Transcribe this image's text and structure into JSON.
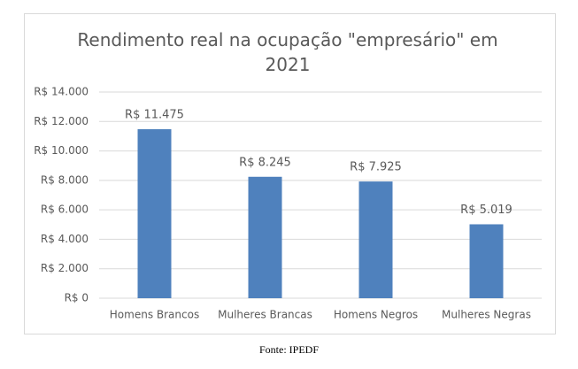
{
  "chart_data": {
    "type": "bar",
    "title": "Rendimento real na ocupação \"empresário\" em 2021",
    "categories": [
      "Homens Brancos",
      "Mulheres Brancas",
      "Homens Negros",
      "Mulheres Negras"
    ],
    "values": [
      11475,
      8245,
      7925,
      5019
    ],
    "value_labels": [
      "R$ 11.475",
      "R$ 8.245",
      "R$ 7.925",
      "R$ 5.019"
    ],
    "color": "#4f81bd",
    "ylim": [
      0,
      14000
    ],
    "yticks": [
      {
        "value": 0,
        "label": "R$ 0"
      },
      {
        "value": 2000,
        "label": "R$ 2.000"
      },
      {
        "value": 4000,
        "label": "R$ 4.000"
      },
      {
        "value": 6000,
        "label": "R$ 6.000"
      },
      {
        "value": 8000,
        "label": "R$ 8.000"
      },
      {
        "value": 10000,
        "label": "R$ 10.000"
      },
      {
        "value": 12000,
        "label": "R$ 12.000"
      },
      {
        "value": 14000,
        "label": "R$ 14.000"
      }
    ],
    "grid": true,
    "source": "Fonte: IPEDF"
  }
}
